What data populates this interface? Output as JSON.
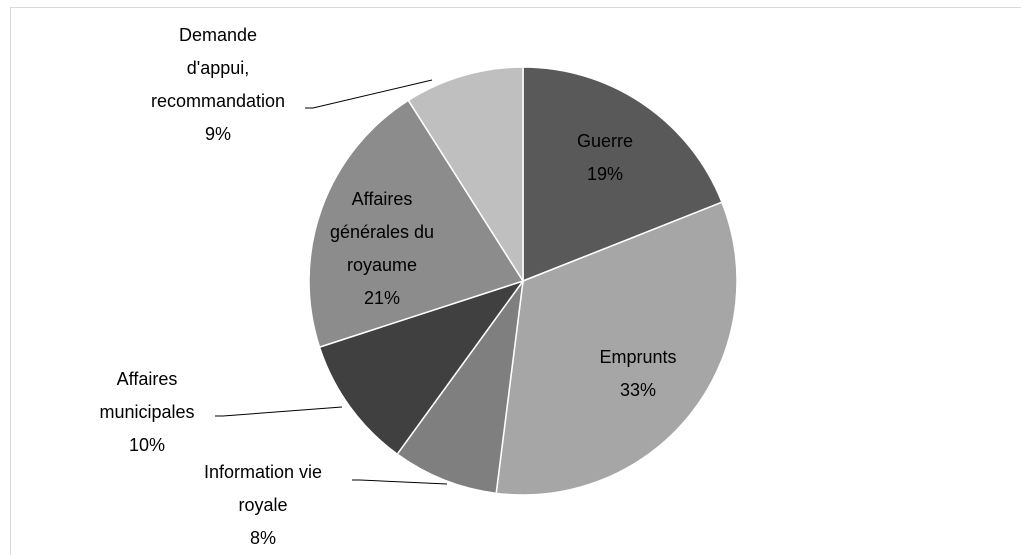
{
  "chart_data": {
    "type": "pie",
    "categories": [
      "Guerre",
      "Emprunts",
      "Information vie royale",
      "Affaires municipales",
      "Affaires générales du royaume",
      "Demande d'appui, recommandation"
    ],
    "values": [
      19,
      33,
      8,
      10,
      21,
      9
    ],
    "value_labels": [
      "19%",
      "33%",
      "8%",
      "10%",
      "21%",
      "9%"
    ],
    "colors": [
      "#595959",
      "#a6a6a6",
      "#7f7f7f",
      "#404040",
      "#8c8c8c",
      "#bfbfbf"
    ]
  }
}
